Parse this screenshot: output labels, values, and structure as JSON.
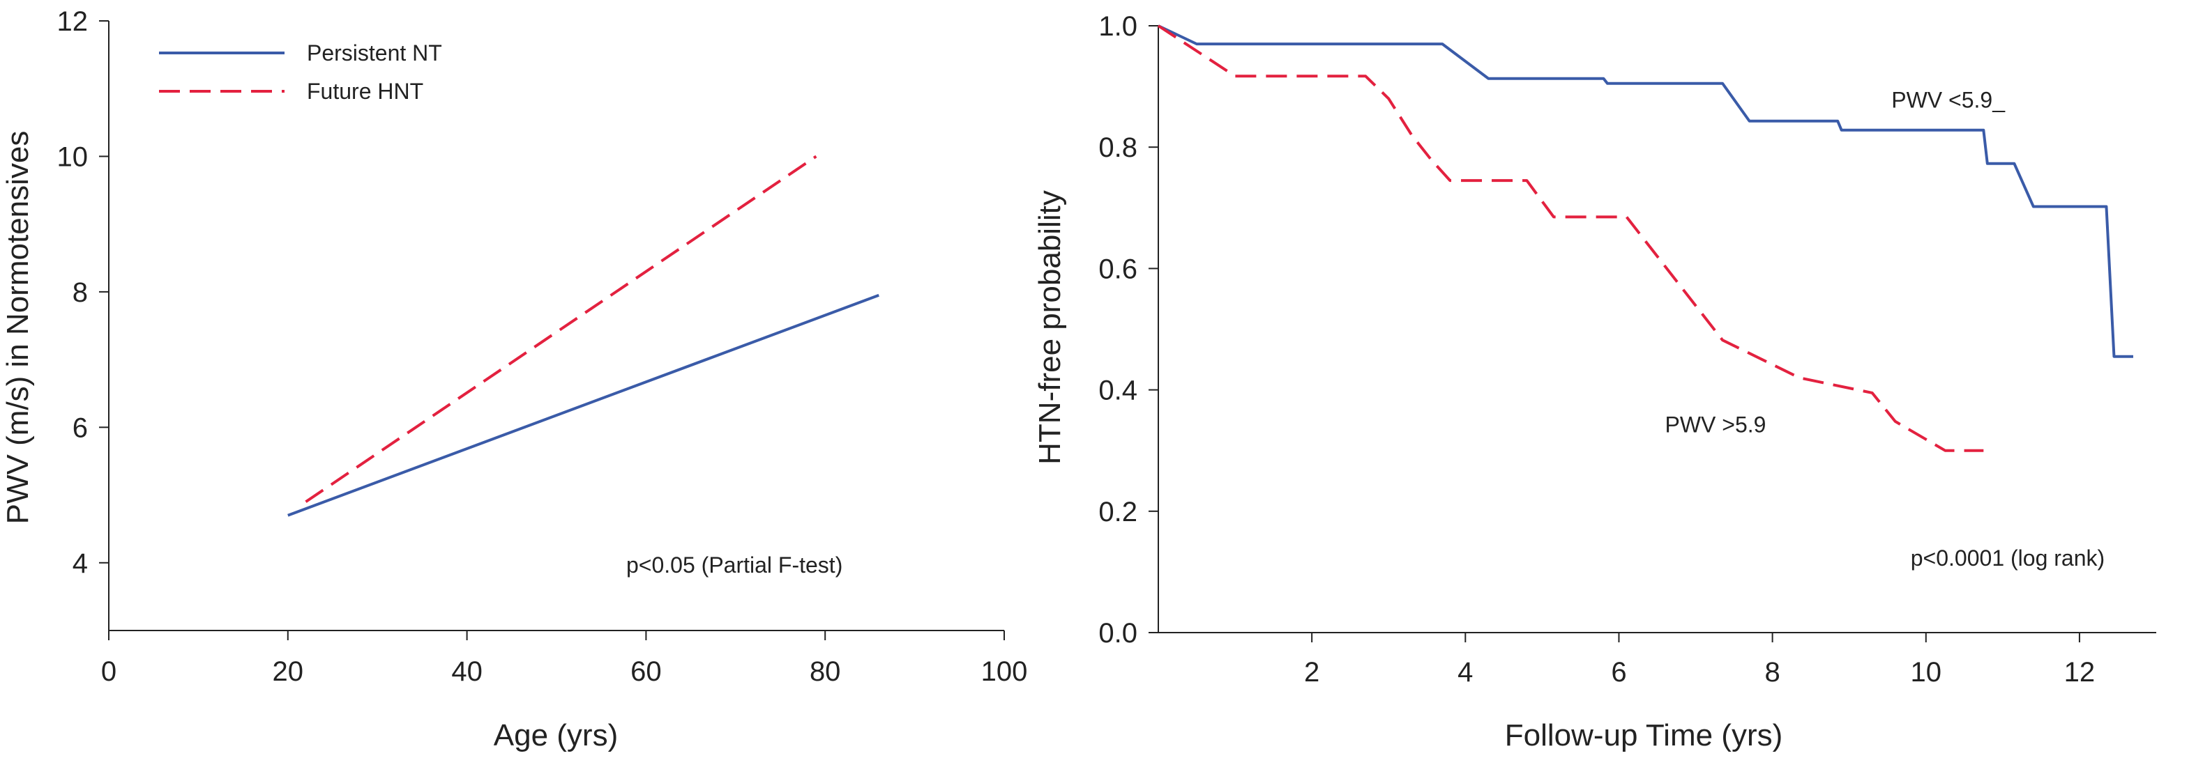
{
  "chart_data": [
    {
      "type": "line",
      "title": "",
      "xlabel": "Age (yrs)",
      "ylabel": "PWV (m/s) in Normotensives",
      "xlim": [
        0,
        100
      ],
      "ylim": [
        3,
        12
      ],
      "xticks": [
        "0",
        "20",
        "40",
        "60",
        "80",
        "100"
      ],
      "yticks": [
        "4",
        "6",
        "8",
        "10",
        "12"
      ],
      "grid": false,
      "legend_position": "top-left",
      "series": [
        {
          "name": "Persistent NT",
          "color": "#3a5ba8",
          "dash": "solid",
          "x": [
            20,
            86
          ],
          "y": [
            4.7,
            7.95
          ]
        },
        {
          "name": "Future HNT",
          "color": "#e3213f",
          "dash": "dashed",
          "x": [
            22,
            79
          ],
          "y": [
            4.9,
            10.0
          ]
        }
      ],
      "annotations": [
        {
          "text": "p<0.05 (Partial F-test)",
          "x": 72,
          "y": 3.9
        }
      ]
    },
    {
      "type": "line",
      "title": "",
      "xlabel": "Follow-up Time (yrs)",
      "ylabel": "HTN-free probability",
      "xlim": [
        0,
        13
      ],
      "ylim": [
        0,
        1.0
      ],
      "xticks": [
        "2",
        "4",
        "6",
        "8",
        "10",
        "12"
      ],
      "yticks": [
        "0.0",
        "0.2",
        "0.4",
        "0.6",
        "0.8",
        "1.0"
      ],
      "grid": false,
      "series": [
        {
          "name": "PWV <5.9_",
          "color": "#3a5ba8",
          "dash": "solid",
          "step": true,
          "x": [
            0,
            0.5,
            3.7,
            4.3,
            5.8,
            5.85,
            7.35,
            7.7,
            8.85,
            8.9,
            10.75,
            10.8,
            11.15,
            11.4,
            12.35,
            12.45,
            12.7
          ],
          "y": [
            1.0,
            0.97,
            0.97,
            0.913,
            0.913,
            0.905,
            0.905,
            0.843,
            0.843,
            0.828,
            0.828,
            0.773,
            0.773,
            0.702,
            0.702,
            0.455,
            0.455
          ]
        },
        {
          "name": "PWV >5.9",
          "color": "#e3213f",
          "dash": "dashed",
          "step": true,
          "x": [
            0,
            1.0,
            2.7,
            3.0,
            3.3,
            3.55,
            3.8,
            4.8,
            5.15,
            6.1,
            7.35,
            8.35,
            9.3,
            9.6,
            10.25,
            10.75
          ],
          "y": [
            1.0,
            0.917,
            0.917,
            0.88,
            0.82,
            0.78,
            0.745,
            0.745,
            0.685,
            0.685,
            0.482,
            0.42,
            0.395,
            0.348,
            0.3,
            0.3
          ]
        }
      ],
      "annotations": [
        {
          "text": "PWV <5.9_",
          "x": 9.55,
          "y": 0.865
        },
        {
          "text": "PWV >5.9",
          "x": 6.6,
          "y": 0.33
        },
        {
          "text": "p<0.0001 (log rank)",
          "x": 9.8,
          "y": 0.11
        }
      ]
    }
  ]
}
